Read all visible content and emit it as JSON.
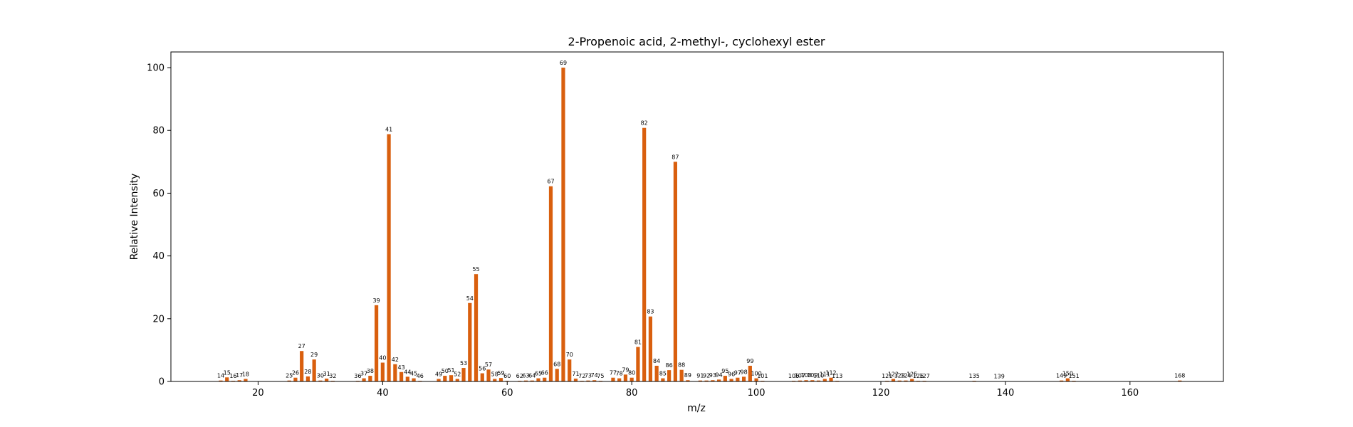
{
  "chart_data": {
    "type": "bar",
    "title": "2-Propenoic acid, 2-methyl-, cyclohexyl ester",
    "xlabel": "m/z",
    "ylabel": "Relative Intensity",
    "xlim": [
      6,
      175
    ],
    "ylim": [
      0,
      105
    ],
    "xticks": [
      20,
      40,
      60,
      80,
      100,
      120,
      140,
      160
    ],
    "yticks": [
      0,
      20,
      40,
      60,
      80,
      100
    ],
    "grid": false,
    "bar_color": "#d95f0e",
    "x": [
      14,
      15,
      16,
      17,
      18,
      25,
      26,
      27,
      28,
      29,
      30,
      31,
      32,
      36,
      37,
      38,
      39,
      40,
      41,
      42,
      43,
      44,
      45,
      46,
      49,
      50,
      51,
      52,
      53,
      54,
      55,
      56,
      57,
      58,
      59,
      60,
      62,
      63,
      64,
      65,
      66,
      67,
      68,
      69,
      70,
      71,
      72,
      73,
      74,
      75,
      77,
      78,
      79,
      80,
      81,
      82,
      83,
      84,
      85,
      86,
      87,
      88,
      89,
      91,
      92,
      93,
      94,
      95,
      96,
      97,
      98,
      99,
      100,
      101,
      106,
      107,
      108,
      109,
      110,
      111,
      112,
      113,
      121,
      122,
      123,
      124,
      125,
      126,
      127,
      135,
      139,
      149,
      150,
      151,
      168
    ],
    "values": [
      0.3,
      1.3,
      0.2,
      0.4,
      0.8,
      0.3,
      1.2,
      9.7,
      1.6,
      7.0,
      0.3,
      0.9,
      0.2,
      0.2,
      1.0,
      1.8,
      24.3,
      6.0,
      78.8,
      5.5,
      3.0,
      1.5,
      1.0,
      0.2,
      0.8,
      1.8,
      2.0,
      0.8,
      4.3,
      25.0,
      34.2,
      2.6,
      3.8,
      0.8,
      1.1,
      0.2,
      0.2,
      0.3,
      0.3,
      1.0,
      1.2,
      62.2,
      4.0,
      100.0,
      7.0,
      0.9,
      0.2,
      0.3,
      0.4,
      0.2,
      1.2,
      1.0,
      2.2,
      1.2,
      11.0,
      80.8,
      20.7,
      5.0,
      1.0,
      3.6,
      70.0,
      3.7,
      0.4,
      0.3,
      0.3,
      0.4,
      0.6,
      1.8,
      0.8,
      1.2,
      1.5,
      5.0,
      1.0,
      0.2,
      0.2,
      0.3,
      0.4,
      0.4,
      0.3,
      0.8,
      1.2,
      0.2,
      0.2,
      0.8,
      0.3,
      0.3,
      0.8,
      0.2,
      0.2,
      0.2,
      0.1,
      0.3,
      1.0,
      0.2,
      0.3
    ]
  }
}
